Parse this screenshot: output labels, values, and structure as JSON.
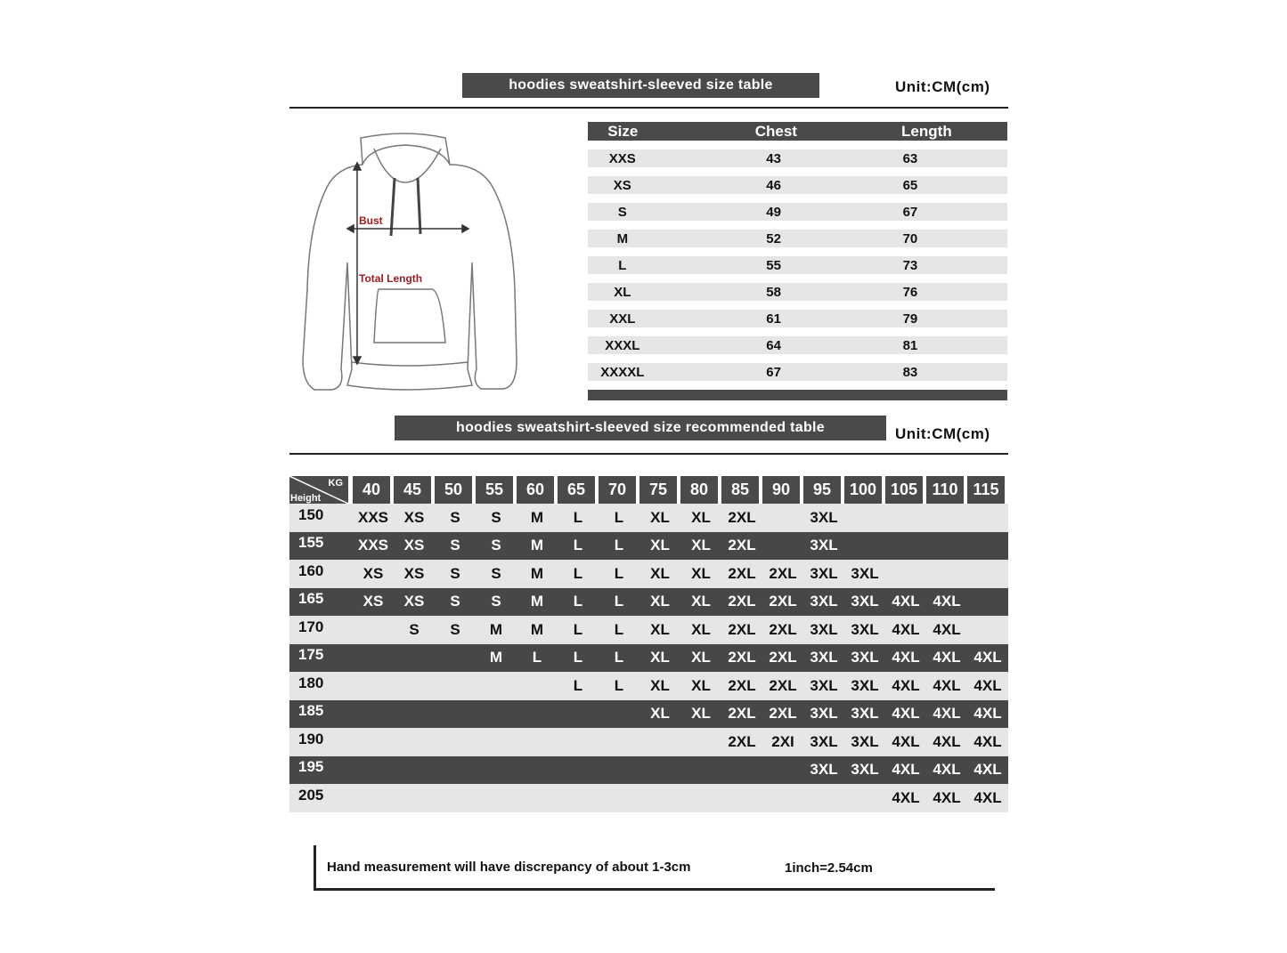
{
  "size_table": {
    "title": "hoodies sweatshirt-sleeved size  table",
    "unit": "Unit:CM(cm)",
    "headers": [
      "Size",
      "Chest",
      "Length"
    ],
    "rows": [
      [
        "XXS",
        "43",
        "63"
      ],
      [
        "XS",
        "46",
        "65"
      ],
      [
        "S",
        "49",
        "67"
      ],
      [
        "M",
        "52",
        "70"
      ],
      [
        "L",
        "55",
        "73"
      ],
      [
        "XL",
        "58",
        "76"
      ],
      [
        "XXL",
        "61",
        "79"
      ],
      [
        "XXXL",
        "64",
        "81"
      ],
      [
        "XXXXL",
        "67",
        "83"
      ]
    ]
  },
  "diagram": {
    "bust_label": "Bust",
    "length_label": "Total Length",
    "label_color": "#9b1c1c"
  },
  "recommended_table": {
    "title": "hoodies sweatshirt-sleeved size recommended table",
    "unit": "Unit:CM(cm)",
    "corner_kg": "KG",
    "corner_height": "Height",
    "weights": [
      "40",
      "45",
      "50",
      "55",
      "60",
      "65",
      "70",
      "75",
      "80",
      "85",
      "90",
      "95",
      "100",
      "105",
      "110",
      "115"
    ],
    "rows": [
      {
        "height": "150",
        "sizes": [
          "XXS",
          "XS",
          "S",
          "S",
          "M",
          "L",
          "L",
          "XL",
          "XL",
          "2XL",
          "",
          "3XL",
          "",
          "",
          "",
          ""
        ]
      },
      {
        "height": "155",
        "sizes": [
          "XXS",
          "XS",
          "S",
          "S",
          "M",
          "L",
          "L",
          "XL",
          "XL",
          "2XL",
          "",
          "3XL",
          "",
          "",
          "",
          ""
        ]
      },
      {
        "height": "160",
        "sizes": [
          "XS",
          "XS",
          "S",
          "S",
          "M",
          "L",
          "L",
          "XL",
          "XL",
          "2XL",
          "2XL",
          "3XL",
          "3XL",
          "",
          "",
          ""
        ]
      },
      {
        "height": "165",
        "sizes": [
          "XS",
          "XS",
          "S",
          "S",
          "M",
          "L",
          "L",
          "XL",
          "XL",
          "2XL",
          "2XL",
          "3XL",
          "3XL",
          "4XL",
          "4XL",
          ""
        ]
      },
      {
        "height": "170",
        "sizes": [
          "",
          "S",
          "S",
          "M",
          "M",
          "L",
          "L",
          "XL",
          "XL",
          "2XL",
          "2XL",
          "3XL",
          "3XL",
          "4XL",
          "4XL",
          ""
        ]
      },
      {
        "height": "175",
        "sizes": [
          "",
          "",
          "",
          "M",
          "L",
          "L",
          "L",
          "XL",
          "XL",
          "2XL",
          "2XL",
          "3XL",
          "3XL",
          "4XL",
          "4XL",
          "4XL"
        ]
      },
      {
        "height": "180",
        "sizes": [
          "",
          "",
          "",
          "",
          "",
          "L",
          "L",
          "XL",
          "XL",
          "2XL",
          "2XL",
          "3XL",
          "3XL",
          "4XL",
          "4XL",
          "4XL"
        ]
      },
      {
        "height": "185",
        "sizes": [
          "",
          "",
          "",
          "",
          "",
          "",
          "",
          "XL",
          "XL",
          "2XL",
          "2XL",
          "3XL",
          "3XL",
          "4XL",
          "4XL",
          "4XL"
        ]
      },
      {
        "height": "190",
        "sizes": [
          "",
          "",
          "",
          "",
          "",
          "",
          "",
          "",
          "",
          "2XL",
          "2XI",
          "3XL",
          "3XL",
          "4XL",
          "4XL",
          "4XL"
        ]
      },
      {
        "height": "195",
        "sizes": [
          "",
          "",
          "",
          "",
          "",
          "",
          "",
          "",
          "",
          "",
          "",
          "3XL",
          "3XL",
          "4XL",
          "4XL",
          "4XL"
        ]
      },
      {
        "height": "205",
        "sizes": [
          "",
          "",
          "",
          "",
          "",
          "",
          "",
          "",
          "",
          "",
          "",
          "",
          "",
          "4XL",
          "4XL",
          "4XL"
        ]
      }
    ]
  },
  "note": {
    "discrepancy": "Hand measurement will have discrepancy of about  1-3cm",
    "conversion": "1inch=2.54cm"
  }
}
